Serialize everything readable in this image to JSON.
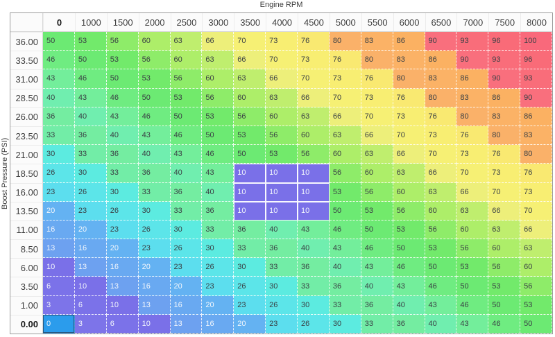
{
  "title": "Engine RPM",
  "y_axis_label": "Boost Pressure (PSI)",
  "chart_data": {
    "type": "heatmap",
    "xlabel": "Engine RPM",
    "ylabel": "Boost Pressure (PSI)",
    "columns": [
      "0",
      "1000",
      "1500",
      "2000",
      "2500",
      "3000",
      "3500",
      "4000",
      "4500",
      "5000",
      "5500",
      "6000",
      "6500",
      "7000",
      "7500",
      "8000"
    ],
    "rows": [
      "36.00",
      "33.50",
      "31.00",
      "28.50",
      "26.00",
      "23.50",
      "21.00",
      "18.50",
      "16.00",
      "13.50",
      "11.00",
      "8.50",
      "6.00",
      "3.50",
      "1.00",
      "0.00"
    ],
    "values": [
      [
        50,
        53,
        56,
        60,
        63,
        66,
        70,
        73,
        76,
        80,
        83,
        86,
        90,
        93,
        96,
        100
      ],
      [
        46,
        50,
        53,
        56,
        60,
        63,
        66,
        70,
        73,
        76,
        80,
        83,
        86,
        90,
        93,
        96
      ],
      [
        43,
        46,
        50,
        53,
        56,
        60,
        63,
        66,
        70,
        73,
        76,
        80,
        83,
        86,
        90,
        93
      ],
      [
        40,
        43,
        46,
        50,
        53,
        56,
        60,
        63,
        66,
        70,
        73,
        76,
        80,
        83,
        86,
        90
      ],
      [
        36,
        40,
        43,
        46,
        50,
        53,
        56,
        60,
        63,
        66,
        70,
        73,
        76,
        80,
        83,
        86
      ],
      [
        33,
        36,
        40,
        43,
        46,
        50,
        53,
        56,
        60,
        63,
        66,
        70,
        73,
        76,
        80,
        83
      ],
      [
        30,
        33,
        36,
        40,
        43,
        46,
        50,
        53,
        56,
        60,
        63,
        66,
        70,
        73,
        76,
        80
      ],
      [
        26,
        30,
        33,
        36,
        40,
        43,
        10,
        10,
        10,
        56,
        60,
        63,
        66,
        70,
        73,
        76
      ],
      [
        23,
        26,
        30,
        33,
        36,
        40,
        10,
        10,
        10,
        53,
        56,
        60,
        63,
        66,
        70,
        73
      ],
      [
        20,
        23,
        26,
        30,
        33,
        36,
        10,
        10,
        10,
        50,
        53,
        56,
        60,
        63,
        66,
        70
      ],
      [
        16,
        20,
        23,
        26,
        30,
        33,
        36,
        40,
        43,
        46,
        50,
        53,
        56,
        60,
        63,
        66
      ],
      [
        13,
        16,
        20,
        23,
        26,
        30,
        33,
        36,
        40,
        43,
        46,
        50,
        53,
        56,
        60,
        63
      ],
      [
        10,
        13,
        16,
        20,
        23,
        26,
        30,
        33,
        36,
        40,
        43,
        46,
        50,
        53,
        56,
        60
      ],
      [
        6,
        10,
        13,
        16,
        20,
        23,
        26,
        30,
        33,
        36,
        40,
        43,
        46,
        50,
        53,
        56
      ],
      [
        3,
        6,
        10,
        13,
        16,
        20,
        23,
        26,
        30,
        33,
        36,
        40,
        43,
        46,
        50,
        53
      ],
      [
        0,
        3,
        6,
        10,
        13,
        16,
        20,
        23,
        26,
        30,
        33,
        36,
        40,
        43,
        46,
        50
      ]
    ],
    "selected_cell": {
      "column": "0",
      "row": "0.00",
      "value": 0
    },
    "highlighted_block": {
      "columns": [
        "3500",
        "4000",
        "4500"
      ],
      "rows": [
        "18.50",
        "16.00",
        "13.50"
      ],
      "value": 10
    },
    "palette": {
      "0": "#2b9cec",
      "3": "#7d74e9",
      "6": "#7b72e9",
      "10": "#7a70e8",
      "13": "#6da1f0",
      "16": "#69a9f1",
      "20": "#64b2f2",
      "23": "#5cdeee",
      "26": "#5ce5e9",
      "30": "#5cebe0",
      "33": "#72eda7",
      "36": "#74eda1",
      "40": "#70eeaf",
      "43": "#73ee9b",
      "46": "#6fec81",
      "50": "#6cea73",
      "53": "#72ea6b",
      "56": "#8eec69",
      "60": "#adee69",
      "63": "#bfee6e",
      "66": "#edef7a",
      "70": "#f6f074",
      "73": "#f8ee72",
      "76": "#f9e971",
      "80": "#fab169",
      "83": "#fbb266",
      "86": "#fbb162",
      "90": "#f96f7d",
      "93": "#f96d7a",
      "96": "#f96b78",
      "100": "#f9697b"
    },
    "light_text_max": 20,
    "text_color_light": "#f2f6fc",
    "text_color_dark": "#3a4045"
  }
}
